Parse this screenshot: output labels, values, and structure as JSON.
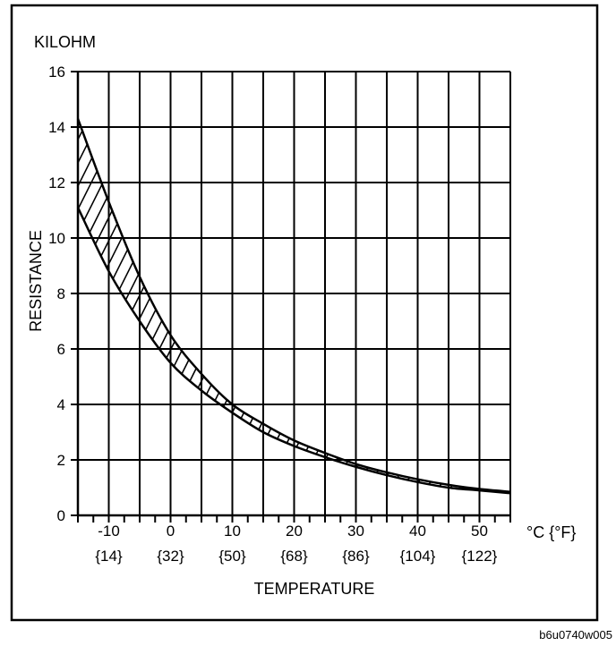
{
  "chart_data": {
    "type": "area",
    "unit_label": "KILOHM",
    "ylabel": "RESISTANCE",
    "xlabel": "TEMPERATURE",
    "x_unit_label": "°C {°F}",
    "xlim": [
      -15,
      55
    ],
    "ylim": [
      0,
      16
    ],
    "y_ticks": [
      0,
      2,
      4,
      6,
      8,
      10,
      12,
      14,
      16
    ],
    "x_ticks": [
      {
        "c": -10,
        "label": "-10",
        "f_label": "{14}"
      },
      {
        "c": 0,
        "label": "0",
        "f_label": "{32}"
      },
      {
        "c": 10,
        "label": "10",
        "f_label": "{50}"
      },
      {
        "c": 20,
        "label": "20",
        "f_label": "{68}"
      },
      {
        "c": 30,
        "label": "30",
        "f_label": "{86}"
      },
      {
        "c": 40,
        "label": "40",
        "f_label": "{104}"
      },
      {
        "c": 50,
        "label": "50",
        "f_label": "{122}"
      }
    ],
    "grid": true,
    "x": [
      -15,
      -10,
      -5,
      0,
      5,
      10,
      15,
      20,
      25,
      30,
      35,
      40,
      45,
      50,
      55
    ],
    "series": [
      {
        "values": [
          14.3,
          11.3,
          8.6,
          6.5,
          5.1,
          4.0,
          3.3,
          2.7,
          2.25,
          1.85,
          1.55,
          1.3,
          1.1,
          0.95,
          0.85
        ]
      },
      {
        "values": [
          11.1,
          8.8,
          7.0,
          5.5,
          4.5,
          3.7,
          3.0,
          2.5,
          2.1,
          1.75,
          1.45,
          1.2,
          1.0,
          0.9,
          0.8
        ]
      }
    ],
    "hatched_band": true
  },
  "footer": {
    "figure_code": "b6u0740w005"
  }
}
